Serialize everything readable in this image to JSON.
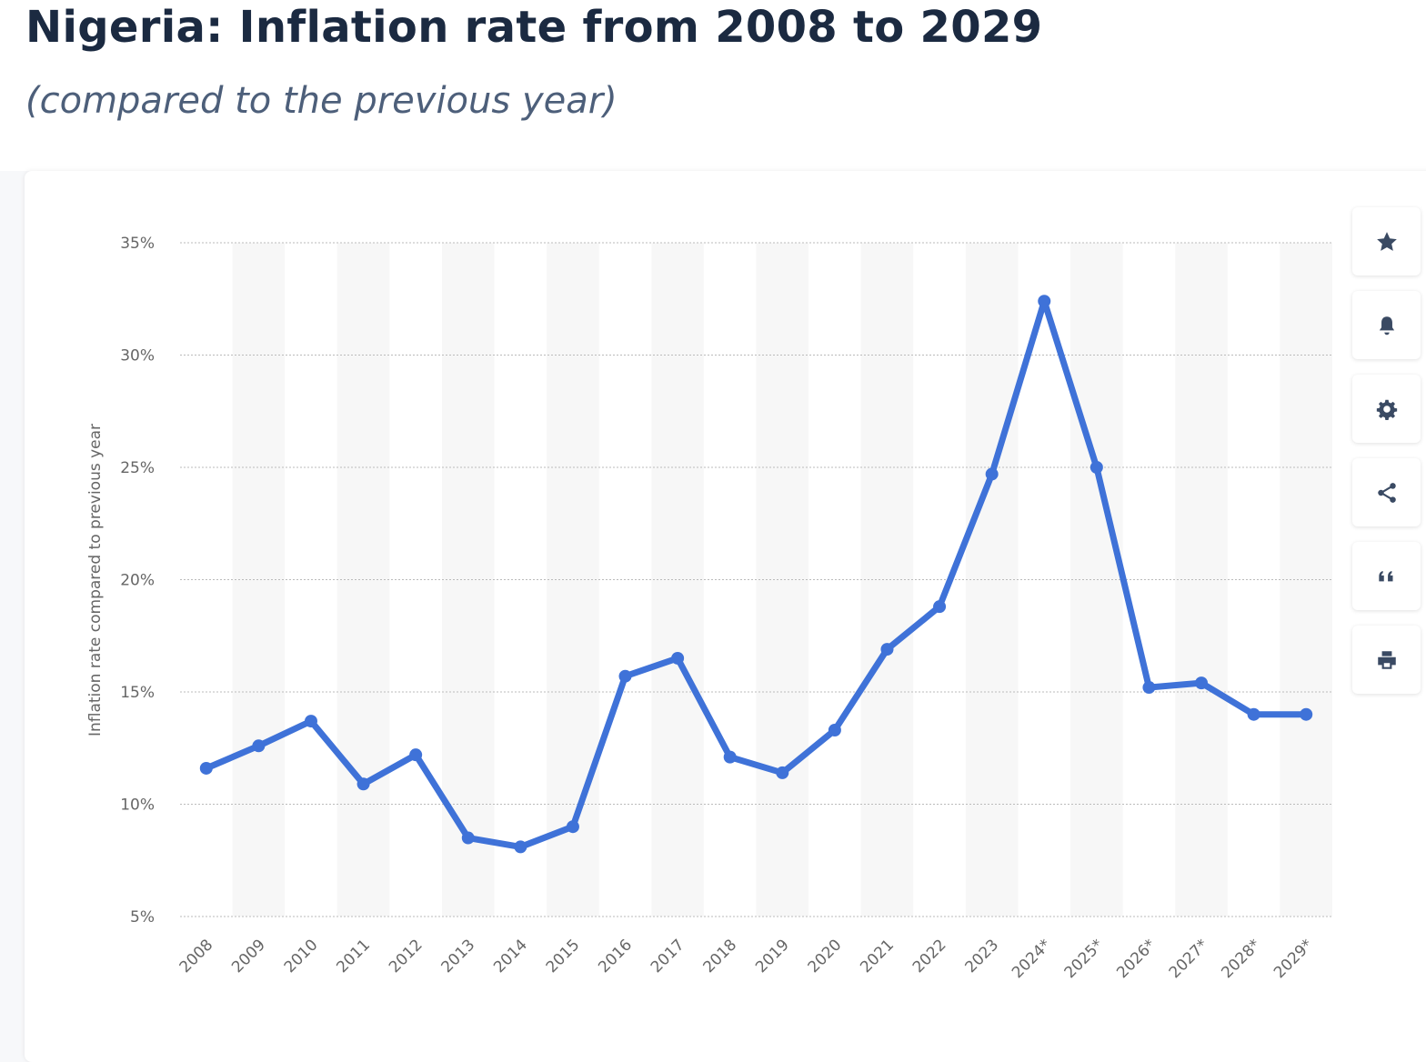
{
  "title": "Nigeria: Inflation rate from 2008 to 2029",
  "subtitle": "(compared to the previous year)",
  "toolbar": [
    {
      "icon": "star-icon",
      "name": "favorite-button"
    },
    {
      "icon": "bell-icon",
      "name": "notification-button"
    },
    {
      "icon": "gear-icon",
      "name": "settings-button"
    },
    {
      "icon": "share-icon",
      "name": "share-button"
    },
    {
      "icon": "quote-icon",
      "name": "cite-button"
    },
    {
      "icon": "print-icon",
      "name": "print-button"
    }
  ],
  "chart_data": {
    "type": "line",
    "title": "",
    "xlabel": "",
    "ylabel": "Inflation rate compared to previous year",
    "categories": [
      "2008",
      "2009",
      "2010",
      "2011",
      "2012",
      "2013",
      "2014",
      "2015",
      "2016",
      "2017",
      "2018",
      "2019",
      "2020",
      "2021",
      "2022",
      "2023",
      "2024*",
      "2025*",
      "2026*",
      "2027*",
      "2028*",
      "2029*"
    ],
    "values": [
      11.6,
      12.6,
      13.7,
      10.9,
      12.2,
      8.5,
      8.1,
      9.0,
      15.7,
      16.5,
      12.1,
      11.4,
      13.3,
      16.9,
      18.8,
      24.7,
      32.4,
      25.0,
      15.2,
      15.4,
      14.0,
      14.0
    ],
    "ylim": [
      5,
      35
    ],
    "yticks": [
      5,
      10,
      15,
      20,
      25,
      30,
      35
    ],
    "ytick_format": "%",
    "grid": true,
    "line_color": "#3f72d8",
    "legend": "none"
  }
}
